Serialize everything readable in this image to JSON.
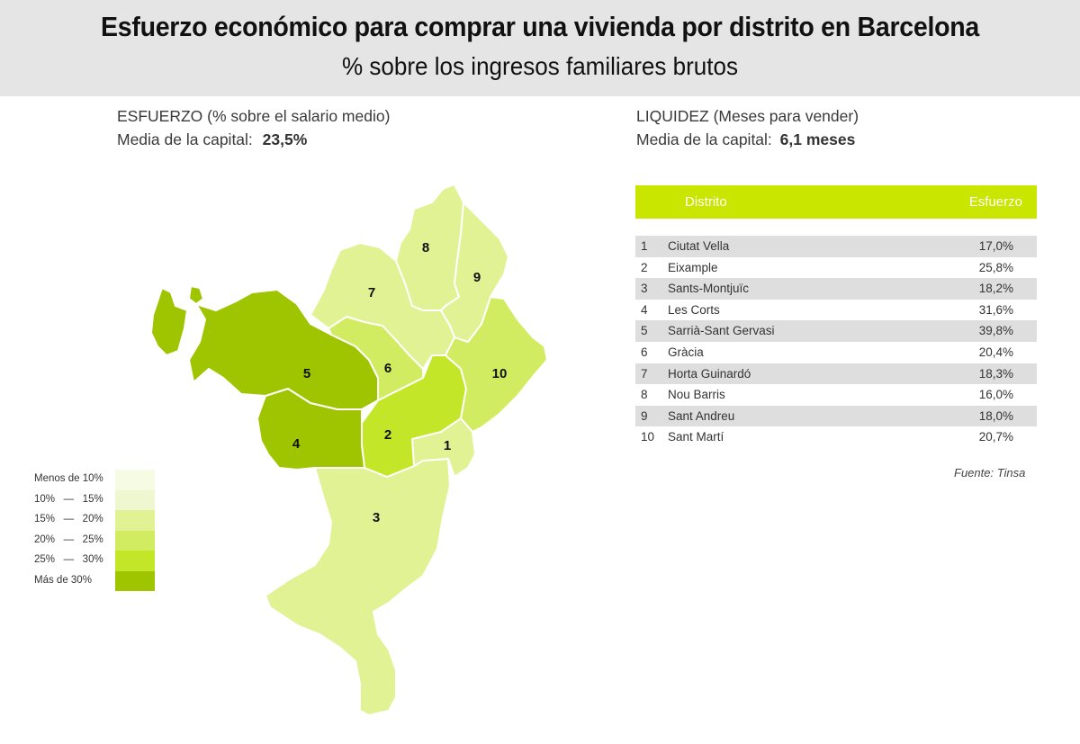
{
  "header": {
    "title": "Esfuerzo económico para comprar una vivienda por distrito en Barcelona",
    "subtitle": "% sobre los ingresos familiares brutos"
  },
  "left_info": {
    "line1": "ESFUERZO (% sobre el salario medio)",
    "line2_label": "Media de la capital:",
    "line2_value": "23,5%"
  },
  "right_info": {
    "line1": "LIQUIDEZ (Meses para vender)",
    "line2_label": "Media de la capital:",
    "line2_value": "6,1 meses"
  },
  "table": {
    "col_distrito": "Distrito",
    "col_esfuerzo": "Esfuerzo",
    "rows": [
      {
        "n": "1",
        "name": "Ciutat Vella",
        "value": "17,0%"
      },
      {
        "n": "2",
        "name": "Eixample",
        "value": "25,8%"
      },
      {
        "n": "3",
        "name": "Sants-Montjuïc",
        "value": "18,2%"
      },
      {
        "n": "4",
        "name": "Les Corts",
        "value": "31,6%"
      },
      {
        "n": "5",
        "name": "Sarrià-Sant Gervasi",
        "value": "39,8%"
      },
      {
        "n": "6",
        "name": "Gràcia",
        "value": "20,4%"
      },
      {
        "n": "7",
        "name": "Horta Guinardó",
        "value": "18,3%"
      },
      {
        "n": "8",
        "name": "Nou Barris",
        "value": "16,0%"
      },
      {
        "n": "9",
        "name": "Sant Andreu",
        "value": "18,0%"
      },
      {
        "n": "10",
        "name": "Sant Martí",
        "value": "20,7%"
      }
    ]
  },
  "source": "Fuente: Tinsa",
  "legend": [
    {
      "label": "Menos de 10%",
      "color": "#f6fbe3"
    },
    {
      "label": "10%   —   15%",
      "color": "#eef7cf"
    },
    {
      "label": "15%   —   20%",
      "color": "#e0f294"
    },
    {
      "label": "20%   —   25%",
      "color": "#d2ec62"
    },
    {
      "label": "25%   —   30%",
      "color": "#c4e628"
    },
    {
      "label": "Más de 30%",
      "color": "#9ec500"
    }
  ],
  "map": {
    "district_labels": [
      "1",
      "2",
      "3",
      "4",
      "5",
      "6",
      "7",
      "8",
      "9",
      "10"
    ],
    "colors": {
      "15_20": "#e0f294",
      "20_25": "#d2ec62",
      "25_30": "#c4e628",
      "over_30": "#9ec500"
    }
  }
}
